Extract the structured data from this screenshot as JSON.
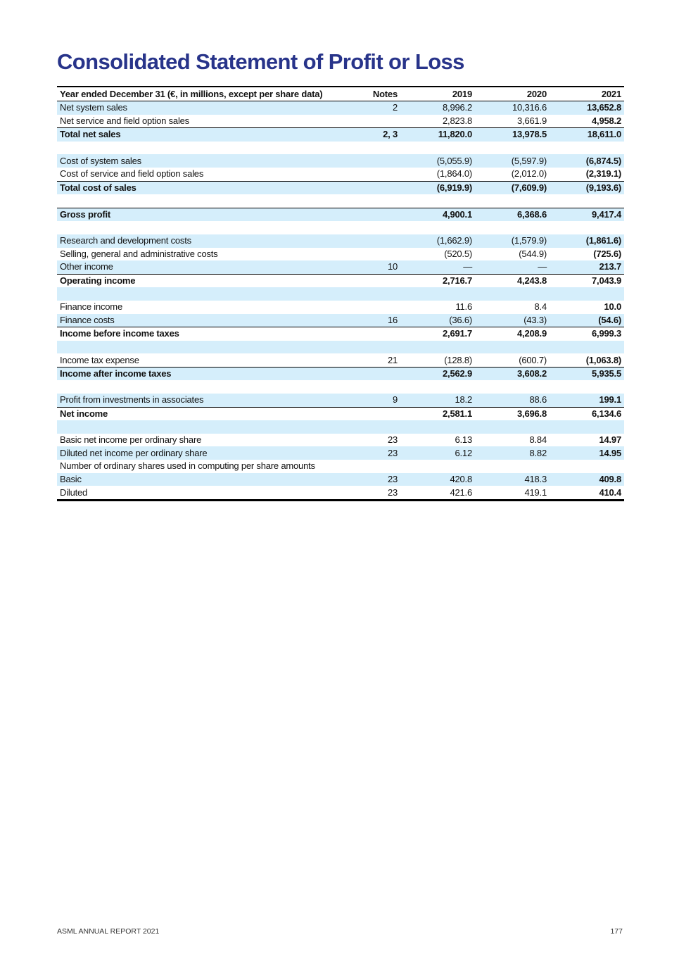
{
  "title": "Consolidated Statement of Profit or Loss",
  "table": {
    "headers": [
      "Year ended December 31 (€, in millions, except per share data)",
      "Notes",
      "2019",
      "2020",
      "2021"
    ],
    "rows": [
      {
        "label": "Net system sales",
        "notes": "2",
        "y2019": "8,996.2",
        "y2020": "10,316.6",
        "y2021": "13,652.8",
        "total": false
      },
      {
        "label": "Net service and field option sales",
        "notes": "",
        "y2019": "2,823.8",
        "y2020": "3,661.9",
        "y2021": "4,958.2",
        "total": false
      },
      {
        "label": "Total net sales",
        "notes": "2, 3",
        "y2019": "11,820.0",
        "y2020": "13,978.5",
        "y2021": "18,611.0",
        "total": true
      },
      {
        "label": "",
        "notes": "",
        "y2019": "",
        "y2020": "",
        "y2021": "",
        "total": false
      },
      {
        "label": "Cost of system sales",
        "notes": "",
        "y2019": "(5,055.9)",
        "y2020": "(5,597.9)",
        "y2021": "(6,874.5)",
        "total": false
      },
      {
        "label": "Cost of service and field option sales",
        "notes": "",
        "y2019": "(1,864.0)",
        "y2020": "(2,012.0)",
        "y2021": "(2,319.1)",
        "total": false
      },
      {
        "label": "Total cost of sales",
        "notes": "",
        "y2019": "(6,919.9)",
        "y2020": "(7,609.9)",
        "y2021": "(9,193.6)",
        "total": true
      },
      {
        "label": "",
        "notes": "",
        "y2019": "",
        "y2020": "",
        "y2021": "",
        "total": false
      },
      {
        "label": "Gross profit",
        "notes": "",
        "y2019": "4,900.1",
        "y2020": "6,368.6",
        "y2021": "9,417.4",
        "total": true
      },
      {
        "label": "",
        "notes": "",
        "y2019": "",
        "y2020": "",
        "y2021": "",
        "total": false
      },
      {
        "label": "Research and development costs",
        "notes": "",
        "y2019": "(1,662.9)",
        "y2020": "(1,579.9)",
        "y2021": "(1,861.6)",
        "total": false
      },
      {
        "label": "Selling, general and administrative costs",
        "notes": "",
        "y2019": "(520.5)",
        "y2020": "(544.9)",
        "y2021": "(725.6)",
        "total": false
      },
      {
        "label": "Other income",
        "notes": "10",
        "y2019": "—",
        "y2020": "—",
        "y2021": "213.7",
        "total": false
      },
      {
        "label": "Operating income",
        "notes": "",
        "y2019": "2,716.7",
        "y2020": "4,243.8",
        "y2021": "7,043.9",
        "total": true
      },
      {
        "label": "",
        "notes": "",
        "y2019": "",
        "y2020": "",
        "y2021": "",
        "total": false
      },
      {
        "label": "Finance income",
        "notes": "",
        "y2019": "11.6",
        "y2020": "8.4",
        "y2021": "10.0",
        "total": false
      },
      {
        "label": "Finance costs",
        "notes": "16",
        "y2019": "(36.6)",
        "y2020": "(43.3)",
        "y2021": "(54.6)",
        "total": false
      },
      {
        "label": "Income before income taxes",
        "notes": "",
        "y2019": "2,691.7",
        "y2020": "4,208.9",
        "y2021": "6,999.3",
        "total": true
      },
      {
        "label": "",
        "notes": "",
        "y2019": "",
        "y2020": "",
        "y2021": "",
        "total": false
      },
      {
        "label": "Income tax expense",
        "notes": "21",
        "y2019": "(128.8)",
        "y2020": "(600.7)",
        "y2021": "(1,063.8)",
        "total": false
      },
      {
        "label": "Income after income taxes",
        "notes": "",
        "y2019": "2,562.9",
        "y2020": "3,608.2",
        "y2021": "5,935.5",
        "total": true
      },
      {
        "label": "",
        "notes": "",
        "y2019": "",
        "y2020": "",
        "y2021": "",
        "total": false
      },
      {
        "label": "Profit from investments in associates",
        "notes": "9",
        "y2019": "18.2",
        "y2020": "88.6",
        "y2021": "199.1",
        "total": false
      },
      {
        "label": "Net income",
        "notes": "",
        "y2019": "2,581.1",
        "y2020": "3,696.8",
        "y2021": "6,134.6",
        "total": true
      },
      {
        "label": "",
        "notes": "",
        "y2019": "",
        "y2020": "",
        "y2021": "",
        "total": false
      },
      {
        "label": "Basic net income per ordinary share",
        "notes": "23",
        "y2019": "6.13",
        "y2020": "8.84",
        "y2021": "14.97",
        "total": false
      },
      {
        "label": "Diluted net income per ordinary share",
        "notes": "23",
        "y2019": "6.12",
        "y2020": "8.82",
        "y2021": "14.95",
        "total": false
      },
      {
        "label": "Number of ordinary shares used in computing per share amounts",
        "notes": "",
        "y2019": "",
        "y2020": "",
        "y2021": "",
        "total": false
      },
      {
        "label": "Basic",
        "notes": "23",
        "y2019": "420.8",
        "y2020": "418.3",
        "y2021": "409.8",
        "total": false
      },
      {
        "label": "Diluted",
        "notes": "23",
        "y2019": "421.6",
        "y2020": "419.1",
        "y2021": "410.4",
        "total": false
      }
    ]
  },
  "footer": {
    "left": "ASML ANNUAL REPORT 2021",
    "page": "177"
  }
}
